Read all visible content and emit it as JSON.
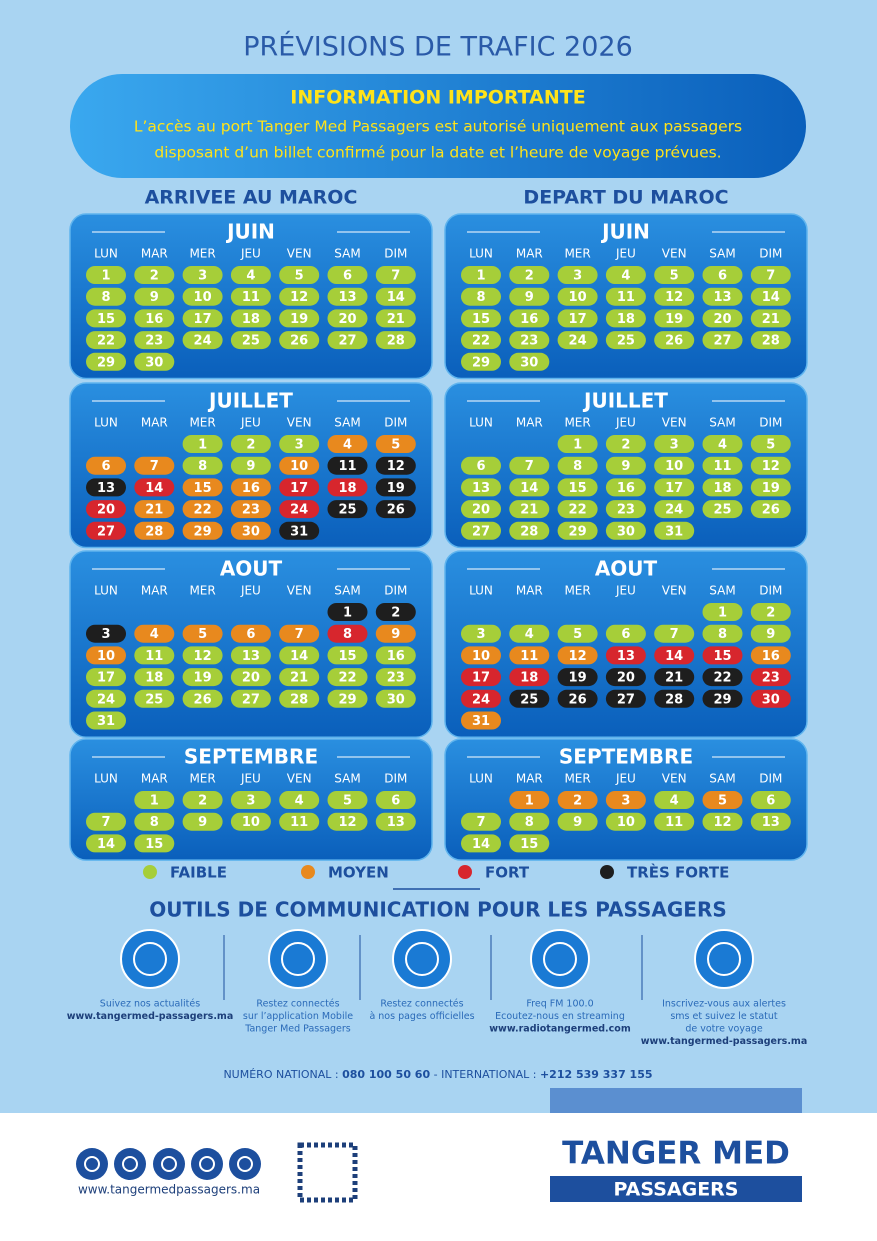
{
  "title": "PRÉVISIONS DE TRAFIC 2026",
  "info": {
    "heading": "INFORMATION IMPORTANTE",
    "text": [
      "L’accès au port Tanger Med Passagers est autorisé uniquement aux passagers",
      "disposant d’un billet confirmé pour la date et l’heure de voyage prévues."
    ]
  },
  "weekdays": [
    "LUN",
    "MAR",
    "MER",
    "JEU",
    "VEN",
    "SAM",
    "DIM"
  ],
  "legend": [
    {
      "label": "FAIBLE",
      "code": "f",
      "color": "#a6ce39"
    },
    {
      "label": "MOYEN",
      "code": "m",
      "color": "#e8891e"
    },
    {
      "label": "FORT",
      "code": "h",
      "color": "#d7262d"
    },
    {
      "label": "TRÈS FORTE",
      "code": "v",
      "color": "#1e1e1e"
    }
  ],
  "calendars": [
    {
      "title": "ARRIVEE AU MAROC",
      "months": [
        {
          "name": "JUIN",
          "days": [
            1,
            2,
            3,
            4,
            5,
            6,
            7,
            8,
            9,
            10,
            11,
            12,
            13,
            14,
            15,
            16,
            17,
            18,
            19,
            20,
            21,
            22,
            23,
            24,
            25,
            26,
            27,
            28,
            29,
            30
          ],
          "levels": "ffffffffffffffffffffffffffffff"
        },
        {
          "name": "JUILLET",
          "days": [
            null,
            null,
            1,
            2,
            3,
            4,
            5,
            6,
            7,
            8,
            9,
            10,
            11,
            12,
            13,
            14,
            15,
            16,
            17,
            18,
            19,
            20,
            21,
            22,
            23,
            24,
            25,
            26,
            27,
            28,
            29,
            30,
            31
          ],
          "levels": "..fffmmmmffmvvvhmmhhvhmmmhvvhmmmv"
        },
        {
          "name": "AOUT",
          "days": [
            null,
            null,
            null,
            null,
            null,
            1,
            2,
            3,
            4,
            5,
            6,
            7,
            8,
            9,
            10,
            11,
            12,
            13,
            14,
            15,
            16,
            17,
            18,
            19,
            20,
            21,
            22,
            23,
            24,
            25,
            26,
            27,
            28,
            29,
            30,
            31
          ],
          "levels": ".....vvvmmmmhmmffffffffffffffffffffff"
        },
        {
          "name": "SEPTEMBRE",
          "days": [
            null,
            1,
            2,
            3,
            4,
            5,
            6,
            7,
            8,
            9,
            10,
            11,
            12,
            13,
            14,
            15
          ],
          "levels": ".fffffffffffffff"
        }
      ]
    },
    {
      "title": "DEPART DU MAROC",
      "months": [
        {
          "name": "JUIN",
          "days": [
            1,
            2,
            3,
            4,
            5,
            6,
            7,
            8,
            9,
            10,
            11,
            12,
            13,
            14,
            15,
            16,
            17,
            18,
            19,
            20,
            21,
            22,
            23,
            24,
            25,
            26,
            27,
            28,
            29,
            30
          ],
          "levels": "ffffffffffffffffffffffffffffff"
        },
        {
          "name": "JUILLET",
          "days": [
            null,
            null,
            1,
            2,
            3,
            4,
            5,
            6,
            7,
            8,
            9,
            10,
            11,
            12,
            13,
            14,
            15,
            16,
            17,
            18,
            19,
            20,
            21,
            22,
            23,
            24,
            25,
            26,
            27,
            28,
            29,
            30,
            31
          ],
          "levels": "..fffffffffffffffffffffffffffffff"
        },
        {
          "name": "AOUT",
          "days": [
            null,
            null,
            null,
            null,
            null,
            1,
            2,
            3,
            4,
            5,
            6,
            7,
            8,
            9,
            10,
            11,
            12,
            13,
            14,
            15,
            16,
            17,
            18,
            19,
            20,
            21,
            22,
            23,
            24,
            25,
            26,
            27,
            28,
            29,
            30,
            31
          ],
          "levels": ".....fffffffffmmmhhhmhhvvvvhhvvvvvhm"
        },
        {
          "name": "SEPTEMBRE",
          "days": [
            null,
            1,
            2,
            3,
            4,
            5,
            6,
            7,
            8,
            9,
            10,
            11,
            12,
            13,
            14,
            15
          ],
          "levels": ".mmmfmffffffffff"
        }
      ]
    }
  ],
  "communication": {
    "title": "OUTILS DE COMMUNICATION POUR LES PASSAGERS",
    "items": [
      {
        "lines": [
          "Suivez nos actualités",
          "www.tangermed-passagers.ma"
        ]
      },
      {
        "lines": [
          "Restez connectés",
          "sur l’application Mobile",
          "Tanger Med Passagers"
        ]
      },
      {
        "lines": [
          "Restez connectés",
          "à nos pages officielles"
        ]
      },
      {
        "lines": [
          "Freq FM 100.0",
          "Ecoutez-nous en streaming",
          "www.radiotangermed.com"
        ]
      },
      {
        "lines": [
          "Inscrivez-vous aux alertes",
          "sms et suivez le statut",
          "de votre voyage",
          "www.tangermed-passagers.ma"
        ]
      }
    ]
  },
  "contact": [
    "NUMÉRO NATIONAL : ",
    "080 100 50 60",
    "  -  INTERNATIONAL : ",
    "+212 539 337 155"
  ],
  "footer": {
    "website": "www.tangermedpassagers.ma",
    "logo": [
      "TANGER MED",
      "PASSAGERS"
    ]
  }
}
